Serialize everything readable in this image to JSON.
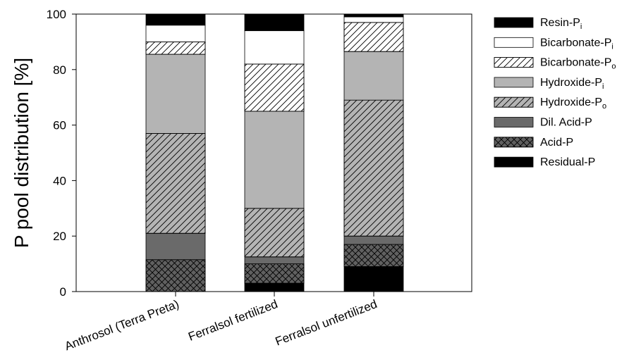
{
  "chart_data": {
    "type": "bar",
    "stacked": true,
    "title": "",
    "xlabel": "",
    "ylabel": "P pool distribution [%]",
    "ylim": [
      0,
      100
    ],
    "yticks": [
      "0",
      "20",
      "40",
      "60",
      "80",
      "100"
    ],
    "categories": [
      "Anthrosol (Terra Preta)",
      "Ferralsol fertilized",
      "Ferralsol unfertilized"
    ],
    "legend_position": "right",
    "series": [
      {
        "name": "Residual-P",
        "base": "Residual-P",
        "sub": "",
        "fill": "#000000",
        "pattern": "none",
        "values": [
          0,
          3,
          9
        ]
      },
      {
        "name": "Acid-P",
        "base": "Acid-P",
        "sub": "",
        "fill": "#606060",
        "pattern": "crosshatch",
        "values": [
          11.5,
          7,
          8
        ]
      },
      {
        "name": "Dil. Acid-P",
        "base": "Dil. Acid-P",
        "sub": "",
        "fill": "#6a6a6a",
        "pattern": "none",
        "values": [
          9.5,
          2.5,
          3
        ]
      },
      {
        "name": "Hydroxide-Po",
        "base": "Hydroxide-P",
        "sub": "o",
        "fill": "#b4b4b4",
        "pattern": "diagonal",
        "values": [
          36,
          17.5,
          49
        ]
      },
      {
        "name": "Hydroxide-Pi",
        "base": "Hydroxide-P",
        "sub": "i",
        "fill": "#b4b4b4",
        "pattern": "none",
        "values": [
          28.5,
          35,
          17.5
        ]
      },
      {
        "name": "Bicarbonate-Po",
        "base": "Bicarbonate-P",
        "sub": "o",
        "fill": "#ffffff",
        "pattern": "diagonal",
        "values": [
          4.5,
          17,
          10.5
        ]
      },
      {
        "name": "Bicarbonate-Pi",
        "base": "Bicarbonate-P",
        "sub": "i",
        "fill": "#ffffff",
        "pattern": "none",
        "values": [
          6,
          12,
          2
        ]
      },
      {
        "name": "Resin-Pi",
        "base": "Resin-P",
        "sub": "i",
        "fill": "#000000",
        "pattern": "none",
        "values": [
          4,
          6,
          1
        ]
      }
    ]
  }
}
